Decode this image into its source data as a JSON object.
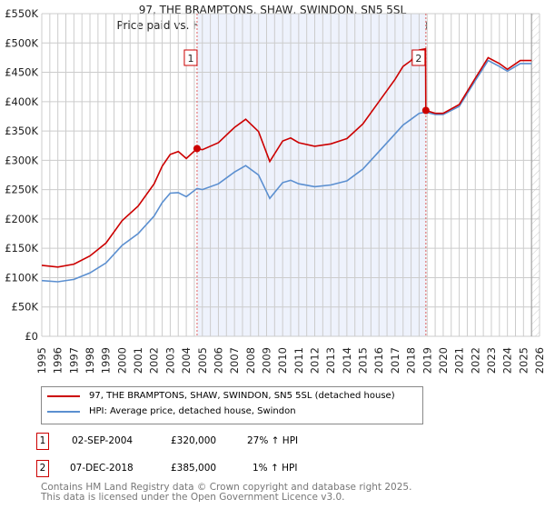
{
  "header": {
    "title": "97, THE BRAMPTONS, SHAW, SWINDON, SN5 5SL",
    "subtitle": "Price paid vs. HM Land Registry's House Price Index (HPI)"
  },
  "chart_data": {
    "type": "line",
    "title": "97, THE BRAMPTONS, SHAW, SWINDON, SN5 5SL",
    "subtitle": "Price paid vs. HM Land Registry's House Price Index (HPI)",
    "xlim": [
      1995,
      2026
    ],
    "ylim": [
      0,
      550000
    ],
    "xticks": [
      "1995",
      "1996",
      "1997",
      "1998",
      "1999",
      "2000",
      "2001",
      "2002",
      "2003",
      "2004",
      "2005",
      "2006",
      "2007",
      "2008",
      "2009",
      "2010",
      "2011",
      "2012",
      "2013",
      "2014",
      "2015",
      "2016",
      "2017",
      "2018",
      "2019",
      "2020",
      "2021",
      "2022",
      "2023",
      "2024",
      "2025",
      "2026"
    ],
    "yticks": [
      {
        "v": 0,
        "label": "£0"
      },
      {
        "v": 50000,
        "label": "£50K"
      },
      {
        "v": 100000,
        "label": "£100K"
      },
      {
        "v": 150000,
        "label": "£150K"
      },
      {
        "v": 200000,
        "label": "£200K"
      },
      {
        "v": 250000,
        "label": "£250K"
      },
      {
        "v": 300000,
        "label": "£300K"
      },
      {
        "v": 350000,
        "label": "£350K"
      },
      {
        "v": 400000,
        "label": "£400K"
      },
      {
        "v": 450000,
        "label": "£450K"
      },
      {
        "v": 500000,
        "label": "£500K"
      },
      {
        "v": 550000,
        "label": "£550K"
      }
    ],
    "grid": true,
    "colors": {
      "property": "#cc0000",
      "hpi": "#5b8fd0",
      "shade": "#eef2fc"
    },
    "series": [
      {
        "name": "97, THE BRAMPTONS, SHAW, SWINDON, SN5 5SL (detached house)",
        "points": [
          [
            1995,
            121000
          ],
          [
            1996,
            118000
          ],
          [
            1997,
            123000
          ],
          [
            1998,
            137000
          ],
          [
            1999,
            159000
          ],
          [
            2000,
            197000
          ],
          [
            2001,
            222000
          ],
          [
            2002,
            260000
          ],
          [
            2002.5,
            290000
          ],
          [
            2003,
            310000
          ],
          [
            2003.5,
            315000
          ],
          [
            2004,
            303000
          ],
          [
            2004.67,
            320000
          ],
          [
            2005,
            318000
          ],
          [
            2006,
            330000
          ],
          [
            2007,
            356000
          ],
          [
            2007.7,
            370000
          ],
          [
            2008.5,
            349000
          ],
          [
            2009.2,
            298000
          ],
          [
            2010,
            333000
          ],
          [
            2010.5,
            338000
          ],
          [
            2011,
            330000
          ],
          [
            2012,
            324000
          ],
          [
            2013,
            328000
          ],
          [
            2014,
            337000
          ],
          [
            2015,
            362000
          ],
          [
            2016,
            400000
          ],
          [
            2017,
            438000
          ],
          [
            2017.5,
            460000
          ],
          [
            2018,
            470000
          ],
          [
            2018.5,
            488000
          ],
          [
            2018.9,
            490000
          ],
          [
            2018.92,
            385000
          ],
          [
            2019.5,
            380000
          ],
          [
            2020,
            380000
          ],
          [
            2021,
            395000
          ],
          [
            2022,
            440000
          ],
          [
            2022.8,
            475000
          ],
          [
            2023.5,
            465000
          ],
          [
            2024,
            455000
          ],
          [
            2024.8,
            470000
          ],
          [
            2025.5,
            470000
          ]
        ]
      },
      {
        "name": "HPI: Average price, detached house, Swindon",
        "points": [
          [
            1995,
            95000
          ],
          [
            1996,
            93000
          ],
          [
            1997,
            97000
          ],
          [
            1998,
            108000
          ],
          [
            1999,
            125000
          ],
          [
            2000,
            155000
          ],
          [
            2001,
            175000
          ],
          [
            2002,
            205000
          ],
          [
            2002.5,
            228000
          ],
          [
            2003,
            244000
          ],
          [
            2003.5,
            245000
          ],
          [
            2004,
            238000
          ],
          [
            2004.67,
            252000
          ],
          [
            2005,
            250000
          ],
          [
            2006,
            260000
          ],
          [
            2007,
            280000
          ],
          [
            2007.7,
            291000
          ],
          [
            2008.5,
            275000
          ],
          [
            2009.2,
            235000
          ],
          [
            2010,
            262000
          ],
          [
            2010.5,
            266000
          ],
          [
            2011,
            260000
          ],
          [
            2012,
            255000
          ],
          [
            2013,
            258000
          ],
          [
            2014,
            265000
          ],
          [
            2015,
            285000
          ],
          [
            2016,
            315000
          ],
          [
            2017,
            345000
          ],
          [
            2017.5,
            360000
          ],
          [
            2018,
            370000
          ],
          [
            2018.5,
            380000
          ],
          [
            2018.9,
            382000
          ],
          [
            2019.5,
            378000
          ],
          [
            2020,
            378000
          ],
          [
            2021,
            392000
          ],
          [
            2022,
            436000
          ],
          [
            2022.8,
            470000
          ],
          [
            2023.5,
            460000
          ],
          [
            2024,
            452000
          ],
          [
            2024.8,
            465000
          ],
          [
            2025.5,
            465000
          ]
        ]
      }
    ],
    "sales": [
      {
        "id": "1",
        "x": 2004.67,
        "y": 320000
      },
      {
        "id": "2",
        "x": 2018.92,
        "y": 385000
      }
    ],
    "forecast_start": 2025.5
  },
  "legend": {
    "items": [
      "97, THE BRAMPTONS, SHAW, SWINDON, SN5 5SL (detached house)",
      "HPI: Average price, detached house, Swindon"
    ]
  },
  "transactions": [
    {
      "id": "1",
      "date": "02-SEP-2004",
      "price": "£320,000",
      "hpi": "27% ↑ HPI"
    },
    {
      "id": "2",
      "date": "07-DEC-2018",
      "price": "£385,000",
      "hpi": "1% ↑ HPI"
    }
  ],
  "footer": {
    "line1": "Contains HM Land Registry data © Crown copyright and database right 2025.",
    "line2": "This data is licensed under the Open Government Licence v3.0."
  }
}
